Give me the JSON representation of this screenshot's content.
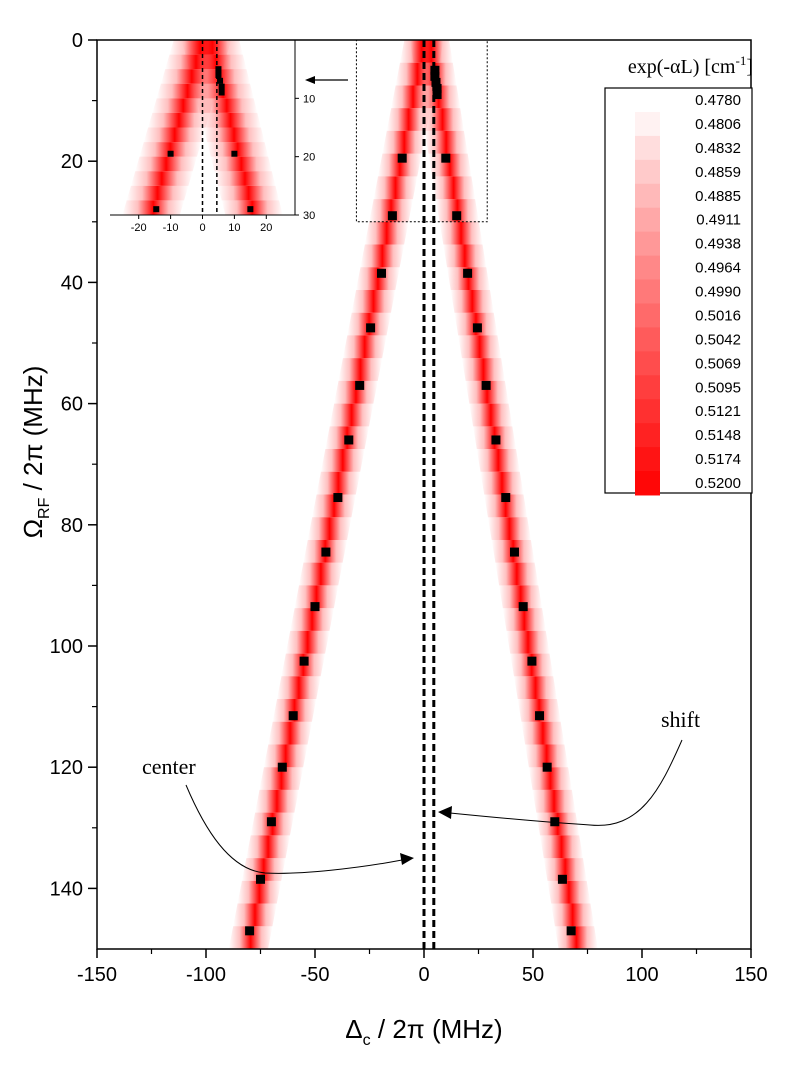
{
  "chart_data": {
    "type": "heatmap",
    "xlabel_main": "Δ",
    "xlabel_sub": "c",
    "xlabel_rest": " / 2π (MHz)",
    "ylabel_main": "Ω",
    "ylabel_sub": "RF",
    "ylabel_rest": " / 2π (MHz)",
    "xlim": [
      -150,
      150
    ],
    "ylim": [
      0,
      150
    ],
    "y_inverted": true,
    "x_ticks": [
      -150,
      -100,
      -50,
      0,
      50,
      100,
      150
    ],
    "y_ticks": [
      0,
      20,
      40,
      60,
      80,
      100,
      120,
      140
    ],
    "colorbar": {
      "title_main": "exp(-αL) [cm",
      "title_sup": "-1",
      "title_end": "]",
      "levels": [
        "0.4780",
        "0.4806",
        "0.4832",
        "0.4859",
        "0.4885",
        "0.4911",
        "0.4938",
        "0.4964",
        "0.4990",
        "0.5016",
        "0.5042",
        "0.5069",
        "0.5095",
        "0.5121",
        "0.5148",
        "0.5174",
        "0.5200"
      ],
      "color_low": "#ffffff",
      "color_high": "#ff0000"
    },
    "bands": [
      {
        "name": "left",
        "x_at_y0": 0,
        "slope": -0.537
      },
      {
        "name": "right",
        "x_at_y0": 2.5,
        "slope": 0.455
      }
    ],
    "series": [
      {
        "marker": "square",
        "points": [
          [
            5,
            5
          ],
          [
            5,
            6
          ],
          [
            5.5,
            7
          ],
          [
            6,
            8
          ],
          [
            6,
            9
          ],
          [
            -10,
            19.5
          ],
          [
            10,
            19.5
          ],
          [
            -14.5,
            29
          ],
          [
            15,
            29
          ],
          [
            -19.5,
            38.5
          ],
          [
            20,
            38.5
          ],
          [
            -24.5,
            47.5
          ],
          [
            24.5,
            47.5
          ],
          [
            -29.5,
            57
          ],
          [
            28.5,
            57
          ],
          [
            -34.5,
            66
          ],
          [
            33,
            66
          ],
          [
            -39.5,
            75.5
          ],
          [
            37.5,
            75.5
          ],
          [
            -45,
            84.5
          ],
          [
            41.5,
            84.5
          ],
          [
            -50,
            93.5
          ],
          [
            45.5,
            93.5
          ],
          [
            -55,
            102.5
          ],
          [
            49.5,
            102.5
          ],
          [
            -60,
            111.5
          ],
          [
            53,
            111.5
          ],
          [
            -65,
            120
          ],
          [
            56.5,
            120
          ],
          [
            -70,
            129
          ],
          [
            60,
            129
          ],
          [
            -75,
            138.5
          ],
          [
            63.5,
            138.5
          ],
          [
            -80,
            147
          ],
          [
            67.5,
            147
          ]
        ]
      }
    ],
    "vlines": [
      {
        "name": "center",
        "x": 0,
        "style": "dashed"
      },
      {
        "name": "shift",
        "x": 4.5,
        "style": "dashed"
      }
    ],
    "annotations": [
      {
        "label": "center"
      },
      {
        "label": "shift"
      }
    ],
    "zoom_box": {
      "xlim": [
        -31,
        29
      ],
      "ylim": [
        0,
        30
      ]
    },
    "inset": {
      "xlim": [
        -29,
        29
      ],
      "ylim": [
        0,
        30
      ],
      "x_ticks": [
        -20,
        -10,
        0,
        10,
        20
      ],
      "y_ticks": [
        10,
        20,
        30
      ],
      "vlines": [
        0,
        4.5
      ],
      "points": [
        [
          5,
          5
        ],
        [
          5,
          6
        ],
        [
          5.5,
          7
        ],
        [
          6,
          8
        ],
        [
          6,
          9
        ],
        [
          -10,
          19.5
        ],
        [
          10,
          19.5
        ],
        [
          -14.5,
          29
        ],
        [
          15,
          29
        ]
      ]
    }
  }
}
